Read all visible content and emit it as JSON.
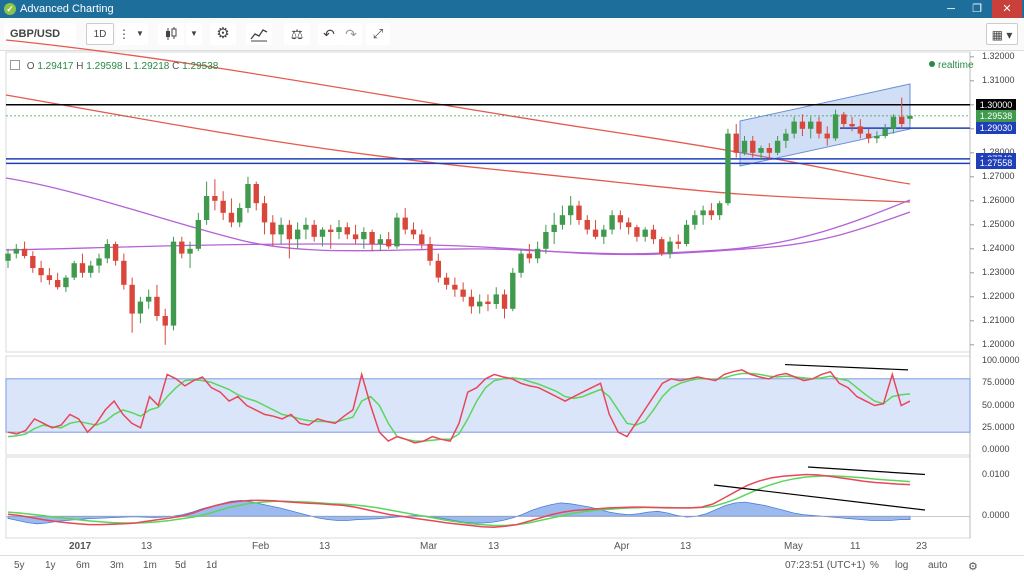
{
  "window": {
    "title": "Advanced Charting"
  },
  "toolbar": {
    "symbol": "GBP/USD",
    "interval": "1D",
    "icons": [
      "more-vertical-icon",
      "dropdown-icon",
      "candlestick-icon",
      "dropdown-icon",
      "gear-icon",
      "indicators-icon",
      "compare-scale-icon",
      "undo-icon",
      "redo-icon",
      "fullscreen-icon",
      "layout-icon"
    ]
  },
  "ohlc": {
    "o_label": "O",
    "o": "1.29417",
    "h_label": "H",
    "h": "1.29598",
    "l_label": "L",
    "l": "1.29218",
    "c_label": "C",
    "c": "1.29538"
  },
  "realtime_label": "realtime",
  "price_axis": {
    "ticks": [
      "1.32000",
      "1.31000",
      "1.30000",
      "1.29000",
      "1.28000",
      "1.27000",
      "1.26000",
      "1.25000",
      "1.24000",
      "1.23000",
      "1.22000",
      "1.21000",
      "1.20000"
    ],
    "boxes": [
      "1.30000",
      "1.29538",
      "1.29030",
      "1.27748",
      "1.27558"
    ]
  },
  "stoch_axis": {
    "ticks": [
      "100.0000",
      "75.0000",
      "50.0000",
      "25.0000",
      "0.0000"
    ]
  },
  "macd_axis": {
    "ticks": [
      "0.0100",
      "0.0000"
    ]
  },
  "time_axis": {
    "ticks": [
      "2017",
      "13",
      "Feb",
      "13",
      "Mar",
      "13",
      "Apr",
      "13",
      "May",
      "11",
      "23"
    ]
  },
  "bottom": {
    "ranges": [
      "5y",
      "1y",
      "6m",
      "3m",
      "1m",
      "5d",
      "1d"
    ],
    "clock": "07:23:51 (UTC+1)",
    "percent": "%",
    "log": "log",
    "auto": "auto"
  },
  "colors": {
    "up": "#3f9a4d",
    "down": "#d9473b",
    "titlebar": "#1e6e9c"
  },
  "chart_data": {
    "type": "candlestick",
    "title": "GBP/USD",
    "ylim": [
      1.197,
      1.322
    ],
    "horizontal_levels": [
      1.3,
      1.2903,
      1.27748,
      1.27558
    ],
    "candles": [
      [
        1.235,
        1.24,
        1.232,
        1.238
      ],
      [
        1.238,
        1.242,
        1.236,
        1.24
      ],
      [
        1.24,
        1.243,
        1.236,
        1.237
      ],
      [
        1.237,
        1.239,
        1.23,
        1.232
      ],
      [
        1.232,
        1.235,
        1.226,
        1.229
      ],
      [
        1.229,
        1.232,
        1.225,
        1.227
      ],
      [
        1.227,
        1.23,
        1.223,
        1.224
      ],
      [
        1.224,
        1.229,
        1.222,
        1.228
      ],
      [
        1.228,
        1.235,
        1.227,
        1.234
      ],
      [
        1.234,
        1.238,
        1.228,
        1.23
      ],
      [
        1.23,
        1.235,
        1.228,
        1.233
      ],
      [
        1.233,
        1.238,
        1.23,
        1.236
      ],
      [
        1.236,
        1.244,
        1.234,
        1.242
      ],
      [
        1.242,
        1.243,
        1.233,
        1.235
      ],
      [
        1.235,
        1.238,
        1.223,
        1.225
      ],
      [
        1.225,
        1.228,
        1.205,
        1.213
      ],
      [
        1.213,
        1.22,
        1.209,
        1.218
      ],
      [
        1.218,
        1.223,
        1.215,
        1.22
      ],
      [
        1.22,
        1.225,
        1.21,
        1.212
      ],
      [
        1.212,
        1.215,
        1.2,
        1.208
      ],
      [
        1.208,
        1.245,
        1.206,
        1.243
      ],
      [
        1.243,
        1.245,
        1.236,
        1.238
      ],
      [
        1.238,
        1.243,
        1.232,
        1.24
      ],
      [
        1.24,
        1.255,
        1.239,
        1.252
      ],
      [
        1.252,
        1.268,
        1.25,
        1.262
      ],
      [
        1.262,
        1.269,
        1.256,
        1.26
      ],
      [
        1.26,
        1.264,
        1.252,
        1.255
      ],
      [
        1.255,
        1.261,
        1.249,
        1.251
      ],
      [
        1.251,
        1.259,
        1.249,
        1.257
      ],
      [
        1.257,
        1.27,
        1.255,
        1.267
      ],
      [
        1.267,
        1.268,
        1.256,
        1.259
      ],
      [
        1.259,
        1.262,
        1.246,
        1.251
      ],
      [
        1.251,
        1.254,
        1.241,
        1.246
      ],
      [
        1.246,
        1.253,
        1.242,
        1.25
      ],
      [
        1.25,
        1.252,
        1.236,
        1.244
      ],
      [
        1.244,
        1.251,
        1.24,
        1.248
      ],
      [
        1.248,
        1.253,
        1.244,
        1.25
      ],
      [
        1.25,
        1.252,
        1.243,
        1.245
      ],
      [
        1.245,
        1.249,
        1.241,
        1.248
      ],
      [
        1.248,
        1.25,
        1.24,
        1.247
      ],
      [
        1.247,
        1.252,
        1.244,
        1.249
      ],
      [
        1.249,
        1.251,
        1.244,
        1.246
      ],
      [
        1.246,
        1.25,
        1.242,
        1.244
      ],
      [
        1.244,
        1.249,
        1.24,
        1.247
      ],
      [
        1.247,
        1.248,
        1.239,
        1.242
      ],
      [
        1.242,
        1.246,
        1.239,
        1.244
      ],
      [
        1.244,
        1.247,
        1.24,
        1.241
      ],
      [
        1.241,
        1.255,
        1.24,
        1.253
      ],
      [
        1.253,
        1.257,
        1.246,
        1.248
      ],
      [
        1.248,
        1.251,
        1.244,
        1.246
      ],
      [
        1.246,
        1.248,
        1.24,
        1.242
      ],
      [
        1.242,
        1.245,
        1.233,
        1.235
      ],
      [
        1.235,
        1.238,
        1.226,
        1.228
      ],
      [
        1.228,
        1.23,
        1.223,
        1.225
      ],
      [
        1.225,
        1.228,
        1.22,
        1.223
      ],
      [
        1.223,
        1.226,
        1.218,
        1.22
      ],
      [
        1.22,
        1.223,
        1.213,
        1.216
      ],
      [
        1.216,
        1.221,
        1.213,
        1.218
      ],
      [
        1.218,
        1.221,
        1.214,
        1.217
      ],
      [
        1.217,
        1.224,
        1.215,
        1.221
      ],
      [
        1.221,
        1.223,
        1.211,
        1.215
      ],
      [
        1.215,
        1.232,
        1.214,
        1.23
      ],
      [
        1.23,
        1.24,
        1.228,
        1.238
      ],
      [
        1.238,
        1.242,
        1.234,
        1.236
      ],
      [
        1.236,
        1.243,
        1.234,
        1.24
      ],
      [
        1.24,
        1.25,
        1.238,
        1.247
      ],
      [
        1.247,
        1.255,
        1.242,
        1.25
      ],
      [
        1.25,
        1.258,
        1.248,
        1.254
      ],
      [
        1.254,
        1.262,
        1.25,
        1.258
      ],
      [
        1.258,
        1.26,
        1.25,
        1.252
      ],
      [
        1.252,
        1.254,
        1.246,
        1.248
      ],
      [
        1.248,
        1.252,
        1.244,
        1.245
      ],
      [
        1.245,
        1.25,
        1.242,
        1.248
      ],
      [
        1.248,
        1.256,
        1.246,
        1.254
      ],
      [
        1.254,
        1.256,
        1.248,
        1.251
      ],
      [
        1.251,
        1.253,
        1.246,
        1.249
      ],
      [
        1.249,
        1.25,
        1.243,
        1.245
      ],
      [
        1.245,
        1.249,
        1.243,
        1.248
      ],
      [
        1.248,
        1.25,
        1.242,
        1.244
      ],
      [
        1.244,
        1.245,
        1.237,
        1.238
      ],
      [
        1.238,
        1.245,
        1.236,
        1.243
      ],
      [
        1.243,
        1.246,
        1.24,
        1.242
      ],
      [
        1.242,
        1.252,
        1.241,
        1.25
      ],
      [
        1.25,
        1.256,
        1.248,
        1.254
      ],
      [
        1.254,
        1.258,
        1.25,
        1.256
      ],
      [
        1.256,
        1.259,
        1.252,
        1.254
      ],
      [
        1.254,
        1.26,
        1.252,
        1.259
      ],
      [
        1.259,
        1.29,
        1.258,
        1.288
      ],
      [
        1.288,
        1.292,
        1.278,
        1.28
      ],
      [
        1.28,
        1.287,
        1.279,
        1.285
      ],
      [
        1.285,
        1.287,
        1.278,
        1.28
      ],
      [
        1.28,
        1.283,
        1.277,
        1.282
      ],
      [
        1.282,
        1.284,
        1.277,
        1.28
      ],
      [
        1.28,
        1.287,
        1.279,
        1.285
      ],
      [
        1.285,
        1.29,
        1.282,
        1.288
      ],
      [
        1.288,
        1.295,
        1.286,
        1.293
      ],
      [
        1.293,
        1.296,
        1.287,
        1.29
      ],
      [
        1.29,
        1.295,
        1.286,
        1.293
      ],
      [
        1.293,
        1.295,
        1.286,
        1.288
      ],
      [
        1.288,
        1.291,
        1.283,
        1.286
      ],
      [
        1.286,
        1.298,
        1.285,
        1.296
      ],
      [
        1.296,
        1.297,
        1.29,
        1.292
      ],
      [
        1.292,
        1.295,
        1.289,
        1.291
      ],
      [
        1.291,
        1.294,
        1.286,
        1.288
      ],
      [
        1.288,
        1.29,
        1.284,
        1.286
      ],
      [
        1.286,
        1.289,
        1.284,
        1.287
      ],
      [
        1.287,
        1.292,
        1.286,
        1.29
      ],
      [
        1.29,
        1.296,
        1.288,
        1.295
      ],
      [
        1.295,
        1.303,
        1.29,
        1.292
      ],
      [
        1.29417,
        1.29598,
        1.29218,
        1.29538
      ]
    ],
    "stochastic": {
      "ylim": [
        0,
        100
      ],
      "upper_band": 80,
      "lower_band": 20,
      "k": [
        20,
        18,
        22,
        35,
        30,
        25,
        28,
        40,
        35,
        20,
        30,
        45,
        55,
        40,
        30,
        25,
        60,
        50,
        85,
        80,
        72,
        78,
        82,
        70,
        65,
        55,
        60,
        50,
        45,
        40,
        38,
        35,
        40,
        30,
        28,
        35,
        32,
        30,
        38,
        45,
        85,
        50,
        20,
        10,
        15,
        12,
        8,
        10,
        15,
        12,
        10,
        30,
        65,
        70,
        80,
        85,
        82,
        80,
        75,
        72,
        70,
        65,
        60,
        55,
        60,
        65,
        70,
        75,
        40,
        20,
        15,
        30,
        45,
        60,
        75,
        80,
        78,
        80,
        82,
        80,
        78,
        85,
        88,
        90,
        85,
        82,
        80,
        84,
        86,
        82,
        78,
        80,
        85,
        88,
        75,
        70,
        60,
        55,
        50,
        52,
        85,
        50,
        55
      ],
      "d": [
        15,
        16,
        18,
        24,
        28,
        26,
        25,
        30,
        32,
        30,
        28,
        32,
        40,
        45,
        42,
        38,
        45,
        48,
        60,
        70,
        78,
        79,
        78,
        76,
        72,
        68,
        62,
        58,
        55,
        50,
        45,
        40,
        38,
        35,
        33,
        32,
        32,
        31,
        34,
        37,
        55,
        60,
        50,
        30,
        15,
        12,
        10,
        10,
        11,
        12,
        12,
        18,
        35,
        55,
        70,
        78,
        80,
        81,
        80,
        77,
        74,
        70,
        66,
        60,
        58,
        60,
        64,
        68,
        60,
        45,
        30,
        28,
        32,
        45,
        60,
        70,
        75,
        78,
        80,
        80,
        79,
        81,
        84,
        86,
        86,
        85,
        83,
        82,
        83,
        82,
        81,
        80,
        81,
        83,
        80,
        78,
        70,
        62,
        55,
        52,
        60,
        62,
        63
      ]
    },
    "macd": {
      "ylim": [
        -0.004,
        0.013
      ],
      "histogram": [
        -0.0005,
        -0.001,
        -0.0015,
        -0.0018,
        -0.0016,
        -0.0012,
        -0.001,
        -0.0008,
        -0.0006,
        -0.0005,
        -0.0004,
        -0.0003,
        -0.0002,
        -0.0001,
        -0.0002,
        -0.0003,
        -0.0002,
        0.0,
        0.0004,
        0.001,
        0.0018,
        0.0024,
        0.003,
        0.0036,
        0.0038,
        0.0035,
        0.003,
        0.0025,
        0.002,
        0.0014,
        0.0008,
        0.0002,
        -0.0004,
        -0.0008,
        -0.001,
        -0.001,
        -0.0008,
        -0.0007,
        -0.0006,
        -0.0004,
        -0.0002,
        0.0,
        0.0002,
        0.0001,
        -0.0002,
        -0.0006,
        -0.001,
        -0.0014,
        -0.0016,
        -0.0016,
        -0.0014,
        -0.001,
        -0.0004,
        0.0004,
        0.0014,
        0.0022,
        0.0028,
        0.0032,
        0.003,
        0.0026,
        0.0022,
        0.0016,
        0.001,
        0.0006,
        0.0004,
        0.0006,
        0.001,
        0.0012,
        0.0008,
        0.0002,
        -0.0002,
        0.0,
        0.0006,
        0.0016,
        0.0026,
        0.0032,
        0.0034,
        0.003,
        0.0026,
        0.002,
        0.0014,
        0.0008,
        0.0004,
        0.0002,
        0.0,
        -0.0002,
        -0.0004,
        -0.0006,
        -0.0008,
        -0.001,
        -0.001,
        -0.001,
        -0.0008,
        -0.0008
      ],
      "macd": [
        0.0005,
        0.0002,
        -0.0003,
        -0.0008,
        -0.0012,
        -0.0015,
        -0.0018,
        -0.002,
        -0.002,
        -0.0019,
        -0.0018,
        -0.0016,
        -0.0012,
        -0.0008,
        -0.0004,
        0.0,
        0.0008,
        0.0018,
        0.0026,
        0.0032,
        0.0036,
        0.0038,
        0.0038,
        0.0037,
        0.0035,
        0.0033,
        0.0031,
        0.003,
        0.0028,
        0.0026,
        0.0022,
        0.0016,
        0.001,
        0.0004,
        0.0,
        -0.0004,
        -0.0008,
        -0.0012,
        -0.0016,
        -0.0019,
        -0.0022,
        -0.0025,
        -0.0026,
        -0.0024,
        -0.002,
        -0.0012,
        -0.0004,
        0.0004,
        0.001,
        0.0014,
        0.0016,
        0.0018,
        0.002,
        0.0021,
        0.0022,
        0.0022,
        0.0021,
        0.002,
        0.002,
        0.002,
        0.0022,
        0.003,
        0.0045,
        0.006,
        0.0075,
        0.0085,
        0.0092,
        0.0096,
        0.0098,
        0.01,
        0.0099,
        0.0096,
        0.0092,
        0.0088,
        0.0084,
        0.0081,
        0.0079,
        0.0077,
        0.0076
      ],
      "signal": [
        0.001,
        0.0008,
        0.0005,
        0.0002,
        -0.0002,
        -0.0005,
        -0.0008,
        -0.0011,
        -0.0013,
        -0.0015,
        -0.0016,
        -0.0016,
        -0.0015,
        -0.0013,
        -0.001,
        -0.0006,
        -0.0002,
        0.0004,
        0.0012,
        0.002,
        0.0026,
        0.0031,
        0.0034,
        0.0036,
        0.0036,
        0.0035,
        0.0034,
        0.0032,
        0.003,
        0.0029,
        0.0027,
        0.0024,
        0.002,
        0.0015,
        0.001,
        0.0005,
        0.0,
        -0.0005,
        -0.001,
        -0.0014,
        -0.0018,
        -0.002,
        -0.0022,
        -0.0022,
        -0.002,
        -0.0016,
        -0.001,
        -0.0004,
        0.0002,
        0.0008,
        0.0012,
        0.0015,
        0.0017,
        0.0019,
        0.002,
        0.0021,
        0.0021,
        0.0021,
        0.002,
        0.002,
        0.0021,
        0.0024,
        0.0032,
        0.0042,
        0.0054,
        0.0066,
        0.0076,
        0.0084,
        0.009,
        0.0094,
        0.0096,
        0.0097,
        0.0096,
        0.0094,
        0.0092,
        0.0089,
        0.0087,
        0.0085,
        0.0083
      ]
    }
  }
}
